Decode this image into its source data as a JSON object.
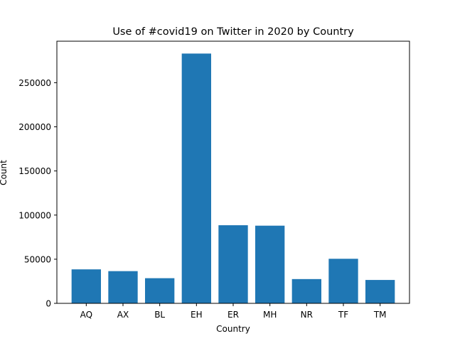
{
  "chart_data": {
    "type": "bar",
    "title": "Use of #covid19 on Twitter in 2020 by Country",
    "xlabel": "Country",
    "ylabel": "Count",
    "categories": [
      "AQ",
      "AX",
      "BL",
      "EH",
      "ER",
      "MH",
      "NR",
      "TF",
      "TM"
    ],
    "values": [
      38500,
      36500,
      28500,
      283000,
      88500,
      88000,
      27500,
      50500,
      26500
    ],
    "ylim": [
      0,
      297000
    ],
    "yticks": [
      0,
      50000,
      100000,
      150000,
      200000,
      250000
    ],
    "bar_color": "#1f77b4",
    "grid": false,
    "legend": "none"
  }
}
